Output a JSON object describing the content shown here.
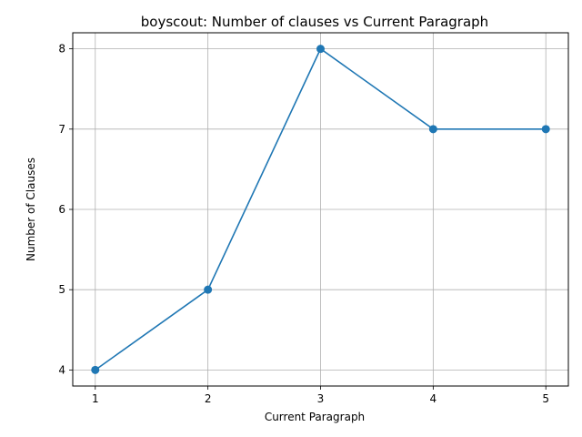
{
  "chart_data": {
    "type": "line",
    "title": "boyscout: Number of clauses vs Current Paragraph",
    "xlabel": "Current Paragraph",
    "ylabel": "Number of Clauses",
    "x": [
      1,
      2,
      3,
      4,
      5
    ],
    "series": [
      {
        "values": [
          4,
          5,
          8,
          7,
          7
        ],
        "color": "#1f77b4",
        "marker": "circle"
      }
    ],
    "xlim": [
      0.8,
      5.2
    ],
    "ylim": [
      3.8,
      8.2
    ],
    "xticks": [
      1,
      2,
      3,
      4,
      5
    ],
    "yticks": [
      4,
      5,
      6,
      7,
      8
    ],
    "grid": true,
    "legend": "none"
  }
}
